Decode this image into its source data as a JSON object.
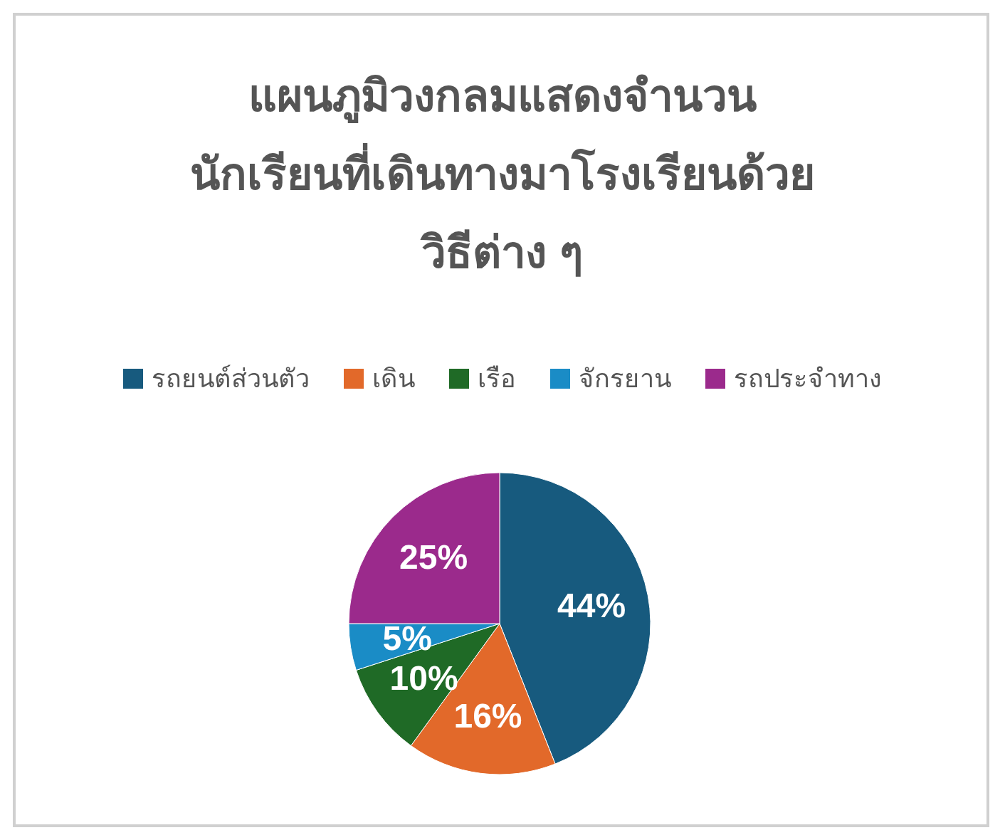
{
  "chart_data": {
    "type": "pie",
    "title": "แผนภูมิวงกลมแสดงจำนวน\nนักเรียนที่เดินทางมาโรงเรียนด้วย\nวิธีต่าง ๆ",
    "categories": [
      "รถยนต์ส่วนตัว",
      "เดิน",
      "เรือ",
      "จักรยาน",
      "รถประจำทาง"
    ],
    "values": [
      44,
      16,
      10,
      5,
      25
    ],
    "colors": [
      "#175a7e",
      "#e2692a",
      "#1f6a26",
      "#1a8cc6",
      "#9b2a8c"
    ],
    "value_labels": [
      "44%",
      "16%",
      "10%",
      "5%",
      "25%"
    ],
    "legend": "top"
  }
}
